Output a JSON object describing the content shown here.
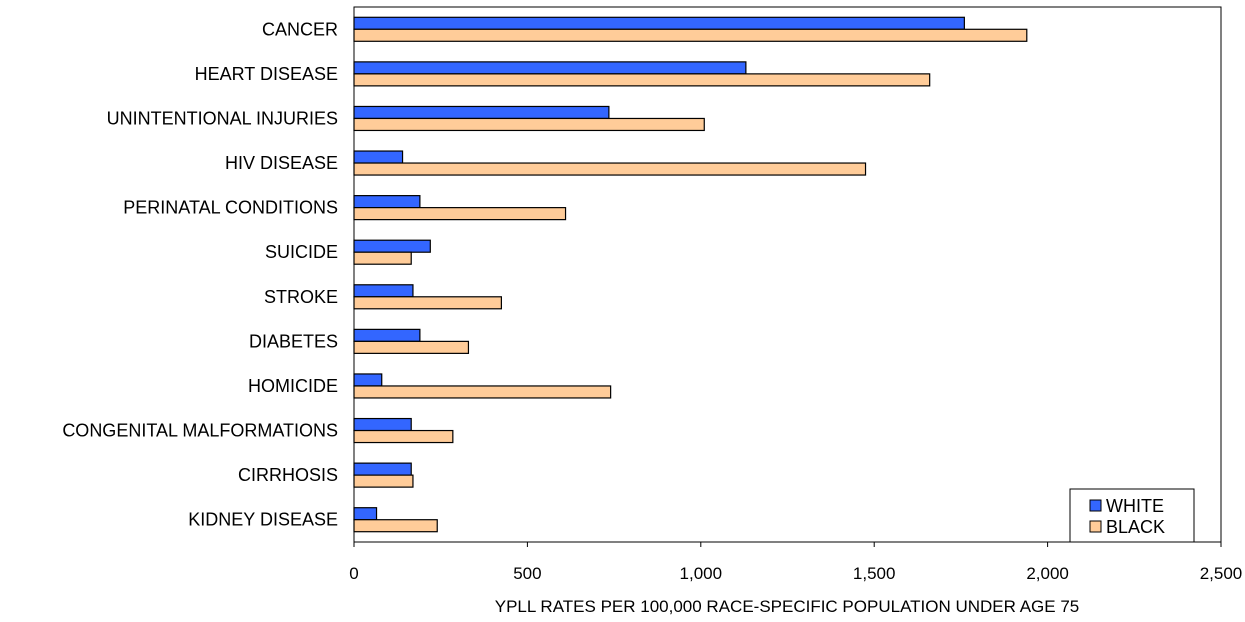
{
  "chart_data": {
    "type": "bar",
    "orientation": "horizontal",
    "categories": [
      "CANCER",
      "HEART DISEASE",
      "UNINTENTIONAL INJURIES",
      "HIV DISEASE",
      "PERINATAL CONDITIONS",
      "SUICIDE",
      "STROKE",
      "DIABETES",
      "HOMICIDE",
      "CONGENITAL MALFORMATIONS",
      "CIRRHOSIS",
      "KIDNEY DISEASE"
    ],
    "series": [
      {
        "name": "WHITE",
        "color": "#3366ff",
        "values": [
          1760,
          1130,
          735,
          140,
          190,
          220,
          170,
          190,
          80,
          165,
          165,
          65
        ]
      },
      {
        "name": "BLACK",
        "color": "#ffcc99",
        "values": [
          1940,
          1660,
          1010,
          1475,
          610,
          165,
          425,
          330,
          740,
          285,
          170,
          240
        ]
      }
    ],
    "xlabel": "YPLL RATES PER 100,000 RACE-SPECIFIC POPULATION UNDER AGE 75",
    "ylabel": "",
    "xlim": [
      0,
      2500
    ],
    "xticks": [
      0,
      500,
      1000,
      1500,
      2000,
      2500
    ],
    "xtick_labels": [
      "0",
      "500",
      "1,000",
      "1,500",
      "2,000",
      "2,500"
    ],
    "grid": false,
    "legend_position": "bottom-right"
  }
}
